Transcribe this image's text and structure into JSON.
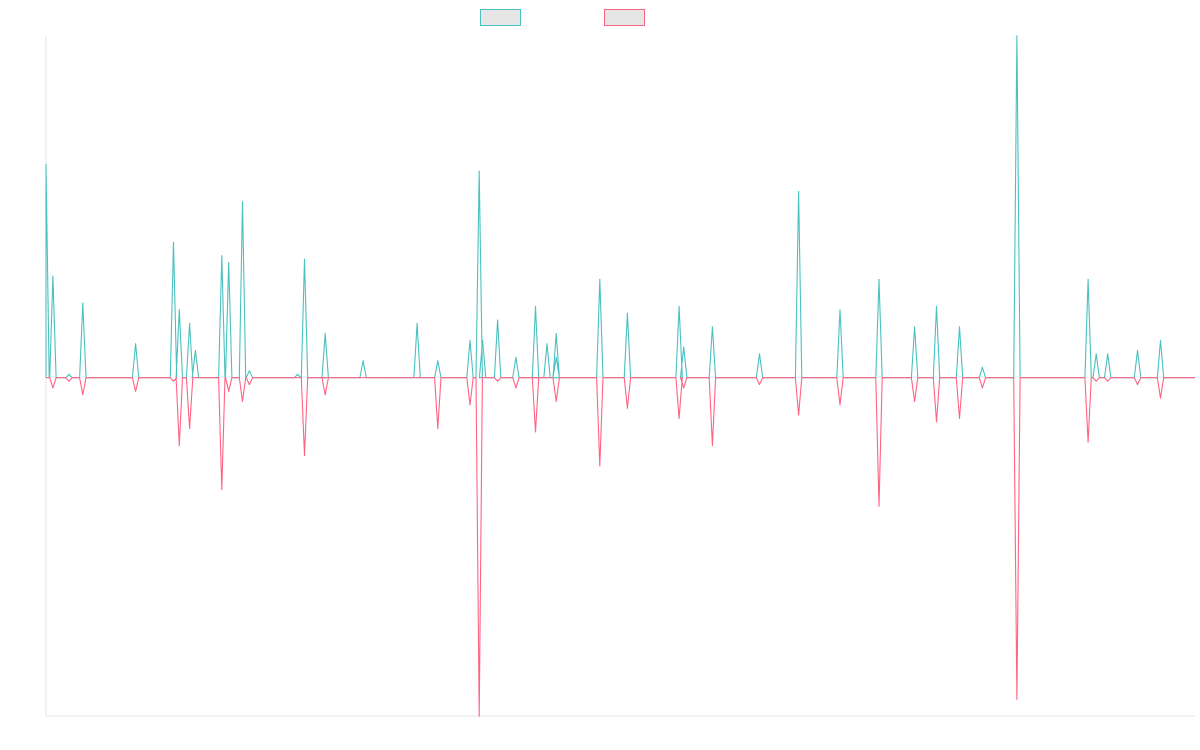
{
  "colors": {
    "series_a": "#4bc0c0",
    "series_b": "#ff6384",
    "legend_fill": "#e6e6e6",
    "axis": "#e5e5e5"
  },
  "chart_data": {
    "type": "line",
    "title": "",
    "xlabel": "",
    "ylabel": "",
    "x_domain": [
      0,
      1
    ],
    "ylim": [
      -1,
      1.01
    ],
    "grid": false,
    "legend_position": "top-center",
    "series": [
      {
        "name": "",
        "color": "#4bc0c0",
        "sign": 1,
        "points": [
          [
            0.0,
            0.63
          ],
          [
            0.006,
            0.3
          ],
          [
            0.02,
            0.01
          ],
          [
            0.032,
            0.22
          ],
          [
            0.04,
            0.0
          ],
          [
            0.078,
            0.1
          ],
          [
            0.111,
            0.4
          ],
          [
            0.116,
            0.2
          ],
          [
            0.125,
            0.16
          ],
          [
            0.13,
            0.08
          ],
          [
            0.153,
            0.36
          ],
          [
            0.159,
            0.34
          ],
          [
            0.171,
            0.52
          ],
          [
            0.177,
            0.02
          ],
          [
            0.219,
            0.01
          ],
          [
            0.225,
            0.35
          ],
          [
            0.243,
            0.13
          ],
          [
            0.242,
            0.0
          ],
          [
            0.276,
            0.05
          ],
          [
            0.3,
            0.0
          ],
          [
            0.307,
            0.0
          ],
          [
            0.323,
            0.16
          ],
          [
            0.325,
            0.0
          ],
          [
            0.341,
            0.05
          ],
          [
            0.359,
            0.0
          ],
          [
            0.369,
            0.11
          ],
          [
            0.38,
            0.11
          ],
          [
            0.377,
            0.61
          ],
          [
            0.393,
            0.17
          ],
          [
            0.409,
            0.06
          ],
          [
            0.426,
            0.21
          ],
          [
            0.427,
            0.0
          ],
          [
            0.444,
            0.06
          ],
          [
            0.435,
            0.0
          ],
          [
            0.436,
            0.1
          ],
          [
            0.444,
            0.13
          ],
          [
            0.482,
            0.29
          ],
          [
            0.506,
            0.19
          ],
          [
            0.551,
            0.21
          ],
          [
            0.555,
            0.09
          ],
          [
            0.58,
            0.15
          ],
          [
            0.621,
            0.07
          ],
          [
            0.655,
            0.55
          ],
          [
            0.671,
            0.0
          ],
          [
            0.691,
            0.2
          ],
          [
            0.725,
            0.29
          ],
          [
            0.756,
            0.15
          ],
          [
            0.775,
            0.21
          ],
          [
            0.795,
            0.15
          ],
          [
            0.815,
            0.03
          ],
          [
            0.845,
            1.01
          ],
          [
            0.907,
            0.29
          ],
          [
            0.914,
            0.07
          ],
          [
            0.924,
            0.07
          ],
          [
            0.95,
            0.08
          ],
          [
            0.97,
            0.11
          ]
        ]
      },
      {
        "name": "",
        "color": "#ff6384",
        "sign": -1,
        "points": [
          [
            0.006,
            0.03
          ],
          [
            0.02,
            0.01
          ],
          [
            0.032,
            0.05
          ],
          [
            0.04,
            0.0
          ],
          [
            0.078,
            0.04
          ],
          [
            0.111,
            0.01
          ],
          [
            0.116,
            0.2
          ],
          [
            0.125,
            0.15
          ],
          [
            0.153,
            0.33
          ],
          [
            0.159,
            0.04
          ],
          [
            0.171,
            0.07
          ],
          [
            0.177,
            0.02
          ],
          [
            0.225,
            0.23
          ],
          [
            0.242,
            0.0
          ],
          [
            0.243,
            0.05
          ],
          [
            0.3,
            0.0
          ],
          [
            0.307,
            0.0
          ],
          [
            0.325,
            0.0
          ],
          [
            0.341,
            0.15
          ],
          [
            0.359,
            0.0
          ],
          [
            0.369,
            0.08
          ],
          [
            0.377,
            1.0
          ],
          [
            0.393,
            0.01
          ],
          [
            0.409,
            0.03
          ],
          [
            0.426,
            0.16
          ],
          [
            0.427,
            0.0
          ],
          [
            0.444,
            0.07
          ],
          [
            0.482,
            0.26
          ],
          [
            0.506,
            0.09
          ],
          [
            0.551,
            0.12
          ],
          [
            0.555,
            0.03
          ],
          [
            0.58,
            0.2
          ],
          [
            0.621,
            0.02
          ],
          [
            0.655,
            0.11
          ],
          [
            0.691,
            0.08
          ],
          [
            0.725,
            0.38
          ],
          [
            0.756,
            0.07
          ],
          [
            0.775,
            0.13
          ],
          [
            0.795,
            0.12
          ],
          [
            0.815,
            0.03
          ],
          [
            0.845,
            0.95
          ],
          [
            0.907,
            0.19
          ],
          [
            0.914,
            0.01
          ],
          [
            0.924,
            0.01
          ],
          [
            0.95,
            0.02
          ],
          [
            0.97,
            0.06
          ]
        ]
      }
    ],
    "legend": [
      {
        "label": "",
        "color": "#4bc0c0"
      },
      {
        "label": "",
        "color": "#ff6384"
      }
    ]
  }
}
